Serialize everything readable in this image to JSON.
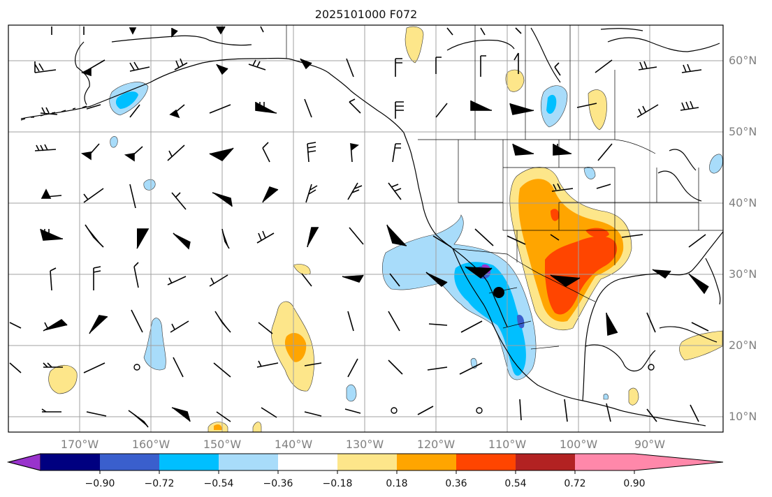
{
  "title": "2025101000 F072",
  "map": {
    "lat_labels": [
      "60°N",
      "50°N",
      "40°N",
      "30°N",
      "20°N",
      "10°N"
    ],
    "lon_labels": [
      "170°W",
      "160°W",
      "150°W",
      "140°W",
      "130°W",
      "120°W",
      "110°W",
      "100°W",
      "90°W"
    ],
    "storm_marker": "storm-center",
    "colors": {
      "coast": "#000000",
      "grid": "#a0a0a0"
    }
  },
  "colorbar": {
    "ticks": [
      "−0.90",
      "−0.72",
      "−0.54",
      "−0.36",
      "−0.18",
      "0.18",
      "0.36",
      "0.54",
      "0.72",
      "0.90"
    ],
    "bins": [
      {
        "color": "#9933cc"
      },
      {
        "color": "#000080"
      },
      {
        "color": "#3a5fcd"
      },
      {
        "color": "#00bfff"
      },
      {
        "color": "#a8dcfa"
      },
      {
        "color": "#ffffff"
      },
      {
        "color": "#fde68a"
      },
      {
        "color": "#ffa500"
      },
      {
        "color": "#ff4500"
      },
      {
        "color": "#b22222"
      },
      {
        "color": "#ff88aa"
      }
    ]
  }
}
